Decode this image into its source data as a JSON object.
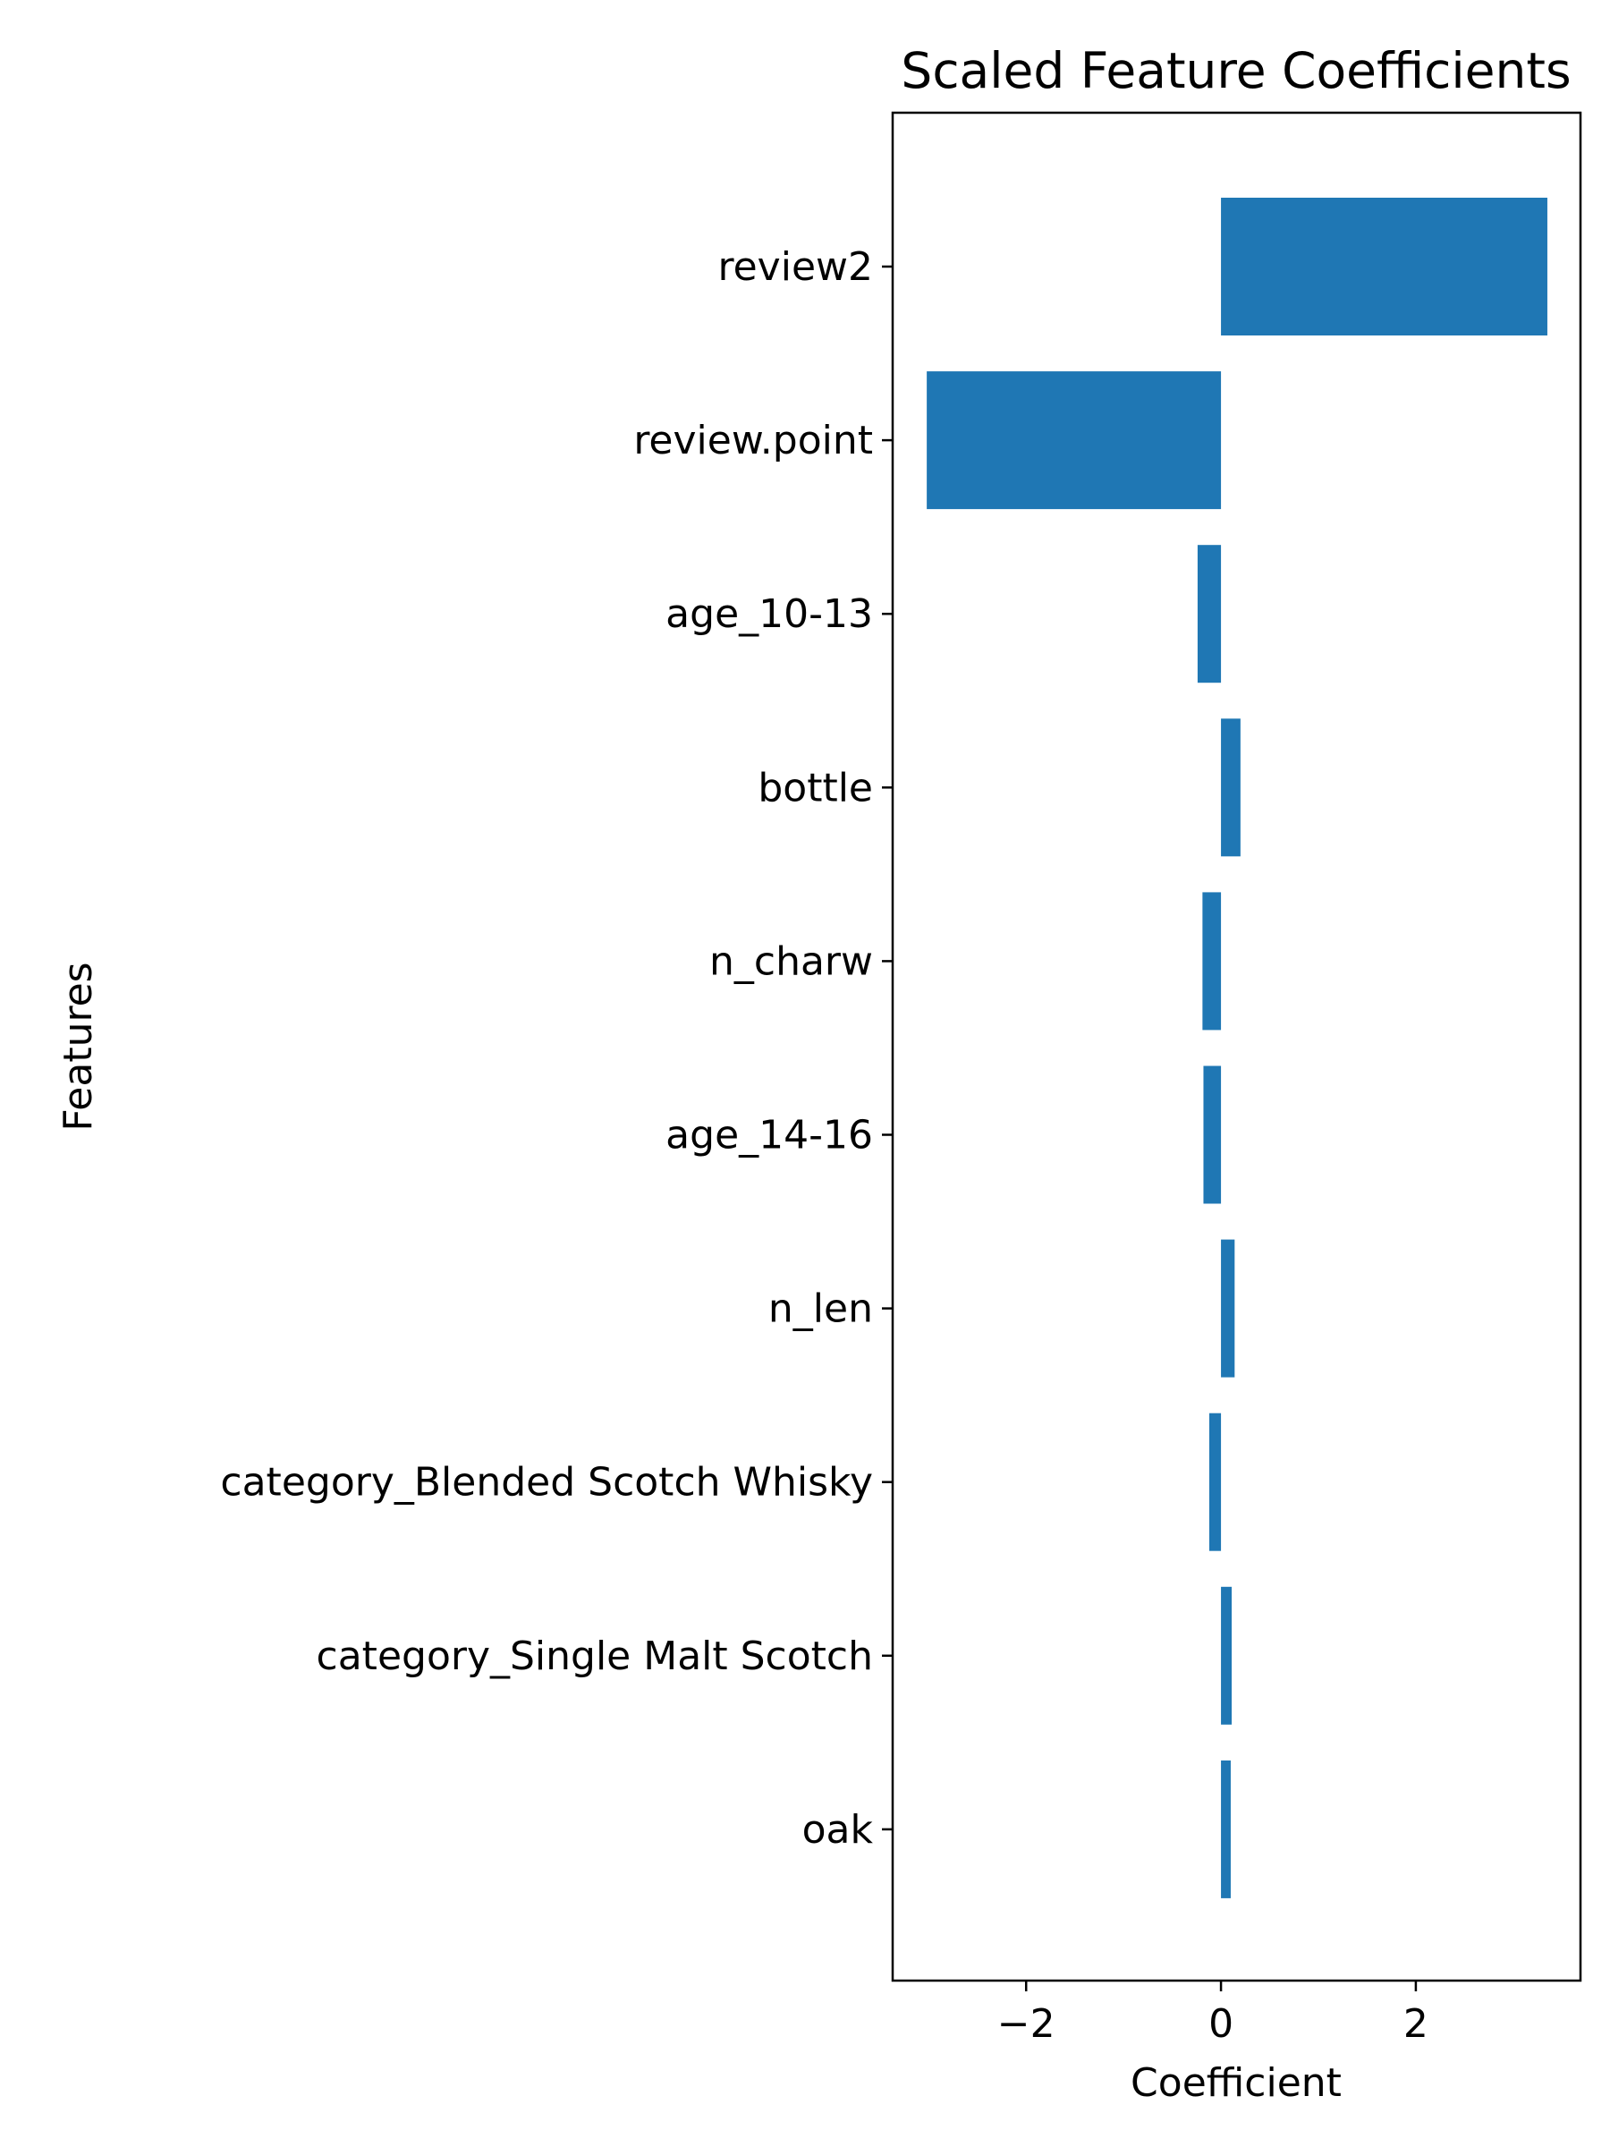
{
  "chart_data": {
    "type": "bar",
    "orientation": "horizontal",
    "title": "Scaled Feature Coefficients",
    "xlabel": "Coefficient",
    "ylabel": "Features",
    "categories": [
      "review2",
      "review.point",
      "age_10-13",
      "bottle",
      "n_charw",
      "age_14-16",
      "n_len",
      "category_Blended Scotch Whisky",
      "category_Single Malt Scotch",
      "oak"
    ],
    "values": [
      3.35,
      -3.02,
      -0.24,
      0.2,
      -0.19,
      -0.18,
      0.14,
      -0.12,
      0.11,
      0.1
    ],
    "xlim": [
      -3.37,
      3.69
    ],
    "xticks": [
      -2,
      0,
      2
    ],
    "xtick_labels": [
      "−2",
      "0",
      "2"
    ],
    "bar_color": "#1f77b4",
    "grid": false,
    "legend": "none"
  }
}
